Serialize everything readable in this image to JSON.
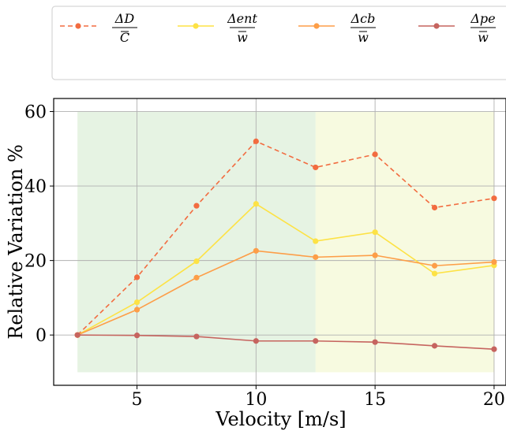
{
  "chart_data": {
    "type": "line",
    "xlabel": "Velocity [m/s]",
    "ylabel": "Relative Variation %",
    "xlim": [
      1.5,
      20.5
    ],
    "ylim": [
      -13.5,
      63.5
    ],
    "xticks": [
      5,
      10,
      15,
      20
    ],
    "yticks": [
      0,
      20,
      40,
      60
    ],
    "grid": true,
    "legend_position": "top",
    "regions": [
      {
        "x0": 2.5,
        "x1": 12.5,
        "y0": -10,
        "y1": 60,
        "color": "#d8ecd4"
      },
      {
        "x0": 12.5,
        "x1": 20,
        "y0": -10,
        "y1": 60,
        "color": "#f3f7d0"
      }
    ],
    "x": [
      2.5,
      5,
      7.5,
      10,
      12.5,
      15,
      17.5,
      20
    ],
    "series": [
      {
        "name": "ΔD / C̄",
        "numerator": "ΔD",
        "denominator": "C",
        "color": "#f26c40",
        "dash": "6,4",
        "values": [
          0,
          15.5,
          34.7,
          52.0,
          45.0,
          48.5,
          34.2,
          36.7
        ]
      },
      {
        "name": "Δent / w̄",
        "numerator": "Δent",
        "denominator": "w",
        "color": "#fde245",
        "dash": "",
        "values": [
          0,
          8.8,
          19.8,
          35.2,
          25.2,
          27.6,
          16.5,
          18.7
        ]
      },
      {
        "name": "Δcb / w̄",
        "numerator": "Δcb",
        "denominator": "w",
        "color": "#fd9e48",
        "dash": "",
        "values": [
          0,
          6.8,
          15.4,
          22.6,
          20.9,
          21.4,
          18.6,
          19.6
        ]
      },
      {
        "name": "Δpe / w̄",
        "numerator": "Δpe",
        "denominator": "w",
        "color": "#c6645f",
        "dash": "",
        "values": [
          0,
          -0.1,
          -0.4,
          -1.6,
          -1.6,
          -1.9,
          -2.9,
          -3.8
        ]
      }
    ]
  }
}
